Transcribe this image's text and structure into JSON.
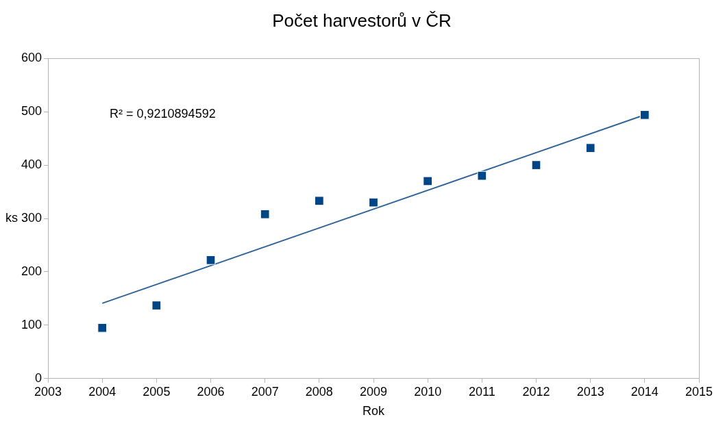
{
  "chart_data": {
    "type": "scatter",
    "title": "Počet harvestorů v ČR",
    "xlabel": "Rok",
    "ylabel": "ks",
    "x": [
      2004,
      2005,
      2006,
      2007,
      2008,
      2009,
      2010,
      2011,
      2012,
      2013,
      2014
    ],
    "series": [
      {
        "color": "#004586",
        "values": [
          95,
          137,
          222,
          308,
          333,
          330,
          370,
          380,
          400,
          432,
          494
        ],
        "marker": "square"
      },
      {
        "type": "line",
        "x": [
          2004,
          2014
        ],
        "values": [
          141,
          494
        ],
        "color": "#2e6399",
        "marker": "none"
      }
    ],
    "xlim": [
      2003,
      2015
    ],
    "xticks": [
      2003,
      2004,
      2005,
      2006,
      2007,
      2008,
      2009,
      2010,
      2011,
      2012,
      2013,
      2014,
      2015
    ],
    "ylim": [
      0,
      600
    ],
    "yticks": [
      0,
      100,
      200,
      300,
      400,
      500,
      600
    ],
    "annotations": [
      "R² = 0,9210894592"
    ]
  }
}
